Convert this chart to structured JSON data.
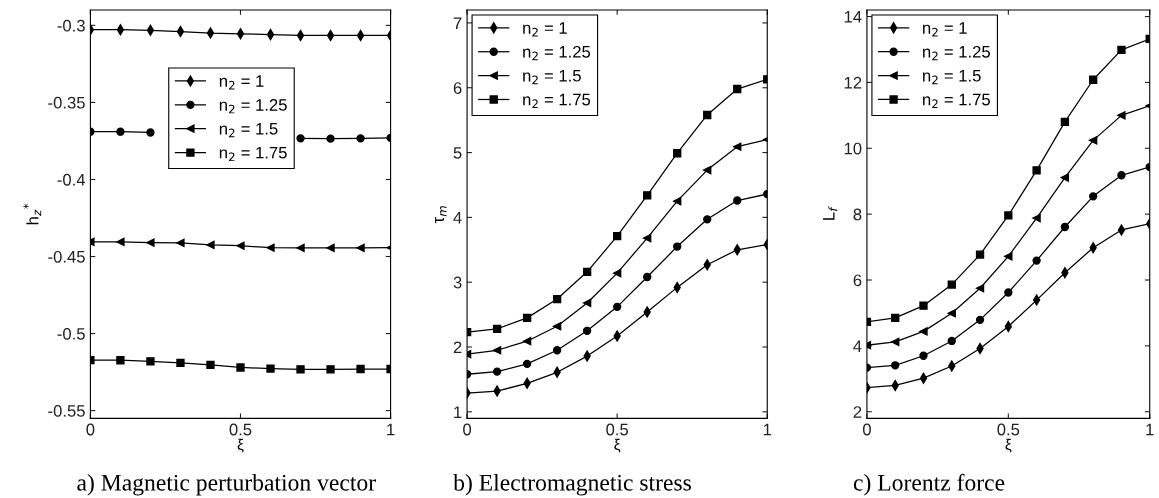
{
  "chart_data": [
    {
      "type": "line",
      "xlabel": "ξ",
      "ylabel": "h$_{z}$$^{*}$",
      "annotations": [
        "a) Magnetic perturbation vector"
      ],
      "x": [
        0,
        0.1,
        0.2,
        0.3,
        0.4,
        0.5,
        0.6,
        0.7,
        0.8,
        0.9,
        1
      ],
      "xlim": [
        0,
        1
      ],
      "xticks": [
        0,
        0.5,
        1
      ],
      "ylim": [
        -0.555,
        -0.29
      ],
      "yticks": [
        {
          "value": -0.55,
          "label": "-0.55"
        },
        {
          "value": -0.5,
          "label": "-0.5"
        },
        {
          "value": -0.45,
          "label": "-0.45"
        },
        {
          "value": -0.4,
          "label": "-0.4"
        },
        {
          "value": -0.35,
          "label": "-0.35"
        },
        {
          "value": -0.3,
          "label": "-0.3"
        }
      ],
      "grid": false,
      "legend": "top center",
      "series": [
        {
          "name": "n$_{2}$ = 1",
          "color": "#000000",
          "marker": "diamond",
          "values": [
            -0.3028,
            -0.3028,
            -0.3032,
            -0.304,
            -0.305,
            -0.3055,
            -0.306,
            -0.3065,
            -0.3065,
            -0.3065,
            -0.3065
          ]
        },
        {
          "name": "n$_{2}$ = 1.25",
          "color": "#000000",
          "marker": "circle",
          "values": [
            -0.369,
            -0.369,
            -0.3695,
            null,
            null,
            null,
            null,
            -0.3733,
            -0.3735,
            -0.3733,
            -0.373
          ]
        },
        {
          "name": "n$_{2}$ = 1.5",
          "color": "#000000",
          "marker": "triangle",
          "values": [
            -0.4405,
            -0.4405,
            -0.441,
            -0.4412,
            -0.4425,
            -0.443,
            -0.4443,
            -0.4444,
            -0.4444,
            -0.4444,
            -0.4443
          ]
        },
        {
          "name": "n$_{2}$ = 1.75",
          "color": "#000000",
          "marker": "square",
          "values": [
            -0.5172,
            -0.5173,
            -0.518,
            -0.519,
            -0.5203,
            -0.522,
            -0.5227,
            -0.5232,
            -0.5232,
            -0.523,
            -0.523
          ]
        }
      ]
    },
    {
      "type": "line",
      "xlabel": "ξ",
      "ylabel": "τ$_{m}$",
      "annotations": [
        "b) Electromagnetic stress"
      ],
      "x": [
        0,
        0.1,
        0.2,
        0.3,
        0.4,
        0.5,
        0.6,
        0.7,
        0.8,
        0.9,
        1
      ],
      "xlim": [
        0,
        1
      ],
      "xticks": [
        0,
        0.5,
        1
      ],
      "ylim": [
        0.9,
        7.2
      ],
      "yticks": [
        1,
        2,
        3,
        4,
        5,
        6,
        7
      ],
      "grid": false,
      "legend": "top left",
      "series": [
        {
          "name": "n$_{2}$ = 1",
          "color": "#000000",
          "marker": "diamond",
          "values": [
            1.29,
            1.32,
            1.44,
            1.61,
            1.86,
            2.17,
            2.54,
            2.92,
            3.27,
            3.5,
            3.58
          ]
        },
        {
          "name": "n$_{2}$ = 1.25",
          "color": "#000000",
          "marker": "circle",
          "values": [
            1.58,
            1.62,
            1.74,
            1.95,
            2.25,
            2.62,
            3.08,
            3.55,
            3.97,
            4.26,
            4.36
          ]
        },
        {
          "name": "n$_{2}$ = 1.5",
          "color": "#000000",
          "marker": "triangle",
          "values": [
            1.89,
            1.95,
            2.09,
            2.32,
            2.68,
            3.14,
            3.68,
            4.25,
            4.73,
            5.09,
            5.2
          ]
        },
        {
          "name": "n$_{2}$ = 1.75",
          "color": "#000000",
          "marker": "square",
          "values": [
            2.23,
            2.28,
            2.45,
            2.74,
            3.16,
            3.71,
            4.34,
            4.99,
            5.58,
            5.98,
            6.13
          ]
        }
      ]
    },
    {
      "type": "line",
      "xlabel": "ξ",
      "ylabel": "L$_{f}$",
      "annotations": [
        "c) Lorentz force"
      ],
      "x": [
        0,
        0.1,
        0.2,
        0.3,
        0.4,
        0.5,
        0.6,
        0.7,
        0.8,
        0.9,
        1
      ],
      "xlim": [
        0,
        1
      ],
      "xticks": [
        0,
        0.5,
        1
      ],
      "ylim": [
        1.8,
        14.2
      ],
      "yticks": [
        2,
        4,
        6,
        8,
        10,
        12,
        14
      ],
      "grid": false,
      "legend": "top left",
      "series": [
        {
          "name": "n$_{2}$ = 1",
          "color": "#000000",
          "marker": "diamond",
          "values": [
            2.73,
            2.8,
            3.02,
            3.39,
            3.92,
            4.59,
            5.39,
            6.22,
            6.98,
            7.52,
            7.71
          ]
        },
        {
          "name": "n$_{2}$ = 1.25",
          "color": "#000000",
          "marker": "circle",
          "values": [
            3.34,
            3.41,
            3.7,
            4.15,
            4.79,
            5.62,
            6.59,
            7.61,
            8.54,
            9.18,
            9.43
          ]
        },
        {
          "name": "n$_{2}$ = 1.5",
          "color": "#000000",
          "marker": "triangle",
          "values": [
            4.02,
            4.12,
            4.44,
            4.99,
            5.75,
            6.72,
            7.88,
            9.11,
            10.24,
            11.0,
            11.29
          ]
        },
        {
          "name": "n$_{2}$ = 1.75",
          "color": "#000000",
          "marker": "square",
          "values": [
            4.73,
            4.85,
            5.22,
            5.86,
            6.77,
            7.96,
            9.33,
            10.8,
            12.08,
            12.99,
            13.32
          ]
        }
      ]
    }
  ]
}
